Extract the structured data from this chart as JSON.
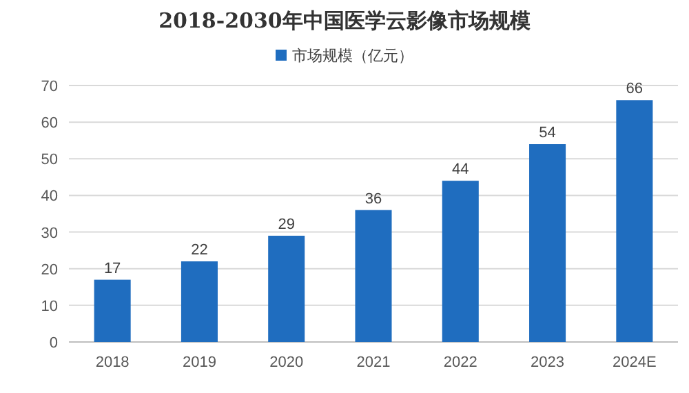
{
  "chart_data": {
    "type": "bar",
    "title": "2018-2030年中国医学云影像市场规模",
    "categories": [
      "2018",
      "2019",
      "2020",
      "2021",
      "2022",
      "2023",
      "2024E"
    ],
    "series": [
      {
        "name": "市场规模（亿元）",
        "color": "#1f6dbf",
        "values": [
          17,
          22,
          29,
          36,
          44,
          54,
          66
        ]
      }
    ],
    "ylim": [
      0,
      70
    ],
    "yticks": [
      0,
      10,
      20,
      30,
      40,
      50,
      60,
      70
    ],
    "grid": "y",
    "legend": "top",
    "data_labels": true
  }
}
